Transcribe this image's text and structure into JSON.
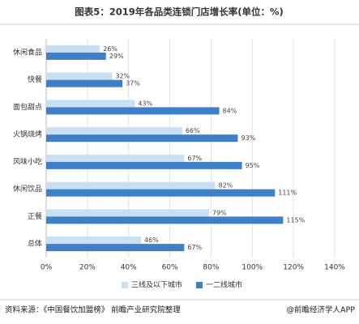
{
  "chart_data": {
    "type": "bar",
    "orientation": "horizontal",
    "title": "图表5：2019年各品类连锁门店增长率(单位：%)",
    "categories": [
      "休闲食品",
      "快餐",
      "面包甜点",
      "火锅烧烤",
      "风味小吃",
      "休闲饮品",
      "正餐",
      "总体"
    ],
    "series": [
      {
        "name": "三线及以下城市",
        "color": "#c9e0f4",
        "values": [
          26,
          32,
          43,
          66,
          67,
          82,
          79,
          46
        ],
        "value_labels": [
          "26%",
          "32%",
          "43%",
          "66%",
          "67%",
          "82%",
          "79%",
          "46%"
        ]
      },
      {
        "name": "一二线城市",
        "color": "#3f7fc8",
        "values": [
          29,
          37,
          84,
          93,
          95,
          111,
          115,
          67
        ],
        "value_labels": [
          "29%",
          "37%",
          "84%",
          "93%",
          "95%",
          "111%",
          "115%",
          "67%"
        ]
      }
    ],
    "xlim": [
      0,
      140
    ],
    "xticks": [
      {
        "value": 0,
        "label": "0%"
      },
      {
        "value": 20,
        "label": "20%"
      },
      {
        "value": 40,
        "label": "40%"
      },
      {
        "value": 60,
        "label": "60%"
      },
      {
        "value": 80,
        "label": "80%"
      },
      {
        "value": 100,
        "label": "100%"
      },
      {
        "value": 120,
        "label": "120%"
      },
      {
        "value": 140,
        "label": "140%"
      }
    ],
    "grid": true,
    "legend": "bottom",
    "source": "资料来源：《中国餐饮加盟榜》 前瞻产业研究院整理",
    "credit": "@前瞻经济学人APP"
  }
}
